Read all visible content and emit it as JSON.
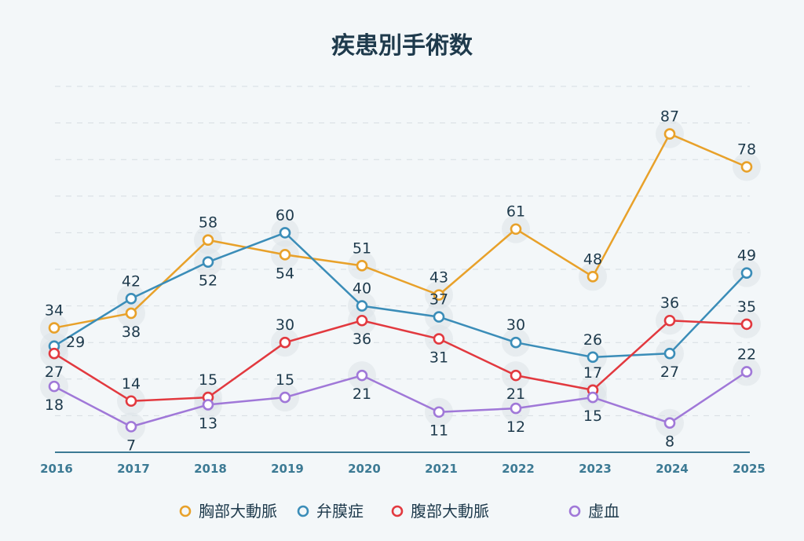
{
  "chart_data": {
    "type": "line",
    "title": "疾患別手術数",
    "xlabel": "",
    "ylabel": "",
    "x": [
      "2016",
      "2017",
      "2018",
      "2019",
      "2020",
      "2021",
      "2022",
      "2023",
      "2024",
      "2025"
    ],
    "ylim": [
      0,
      100
    ],
    "grid": true,
    "legend_position": "bottom",
    "series": [
      {
        "name": "胸部大動脈",
        "color": "#E8A12A",
        "values": [
          34,
          38,
          58,
          54,
          51,
          43,
          61,
          48,
          87,
          78
        ],
        "label_positions": [
          "above",
          "below",
          "above",
          "below",
          "above",
          "above",
          "above",
          "above",
          "above",
          "above"
        ]
      },
      {
        "name": "弁膜症",
        "color": "#3B8DB8",
        "values": [
          29,
          42,
          52,
          60,
          40,
          37,
          30,
          26,
          27,
          49
        ],
        "label_positions": [
          "right",
          "above",
          "below",
          "above",
          "above",
          "above",
          "above",
          "above",
          "below",
          "above"
        ]
      },
      {
        "name": "腹部大動脈",
        "color": "#E2393F",
        "values": [
          27,
          14,
          15,
          30,
          36,
          31,
          21,
          17,
          36,
          35
        ],
        "label_positions": [
          "below",
          "above",
          "above",
          "above",
          "below",
          "below",
          "below",
          "above",
          "above",
          "above"
        ]
      },
      {
        "name": "虚血",
        "color": "#A078D8",
        "values": [
          18,
          7,
          13,
          15,
          21,
          11,
          12,
          15,
          8,
          22
        ],
        "label_positions": [
          "below",
          "below",
          "below",
          "above",
          "below",
          "below",
          "below",
          "below",
          "below",
          "above"
        ]
      }
    ]
  }
}
